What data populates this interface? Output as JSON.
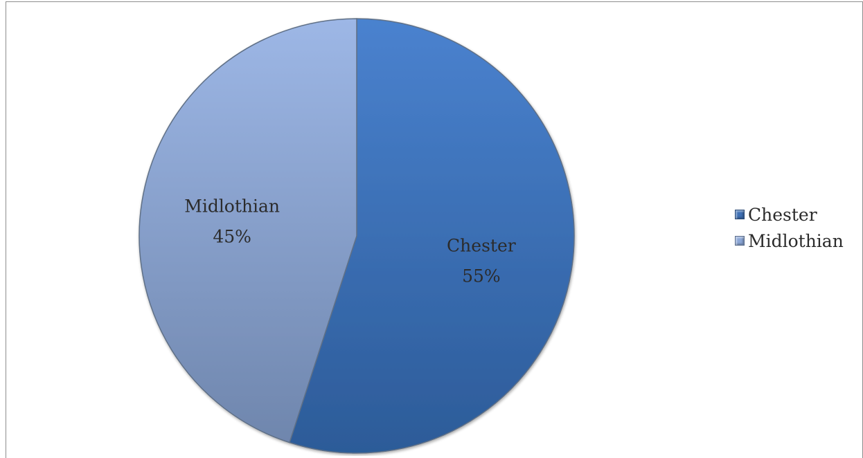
{
  "chart_data": {
    "type": "pie",
    "title": "",
    "slices": [
      {
        "label": "Chester",
        "value": 55,
        "display": "55%",
        "color": "#3e6fb4"
      },
      {
        "label": "Midlothian",
        "value": 45,
        "display": "45%",
        "color": "#8ba6d6"
      }
    ],
    "legend_position": "right",
    "legend": [
      "Chester",
      "Midlothian"
    ]
  }
}
